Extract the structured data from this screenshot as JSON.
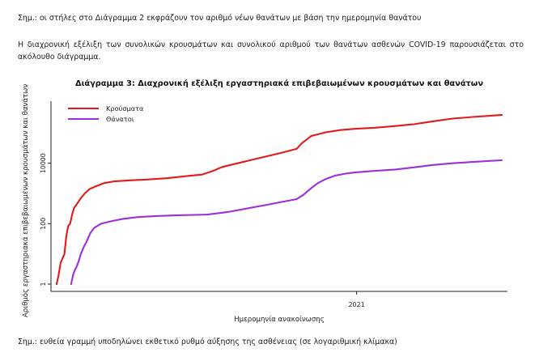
{
  "note_top": "Σημ.: οι στήλες στο Διάγραμμα 2 εκφράζουν τον αριθμό νέων θανάτων με βάση την ημερομηνία θανάτου",
  "paragraph": "Η διαχρονική εξέλιξη των συνολικών κρουσμάτων και συνολικού αριθμού των θανάτων ασθενών COVID-19 παρουσιάζεται στο ακόλουθο διάγραμμα.",
  "note_bottom": "Σημ.: ευθεία γραμμή υποδηλώνει εκθετικό ρυθμό αύξησης της ασθένειας (σε λογαριθμική κλίμακα)",
  "chart_data": {
    "type": "line",
    "title": "Διάγραμμα 3: Διαχρονική εξέλιξη εργαστηριακά επιβεβαιωμένων κρουσμάτων και θανάτων",
    "xlabel": "Ημερομηνία ανακοίνωσης",
    "ylabel": "Αριθμός εργαστηριακά επιβεβαιωμένων κρουσμάτων και θανάτων",
    "y_scale": "log",
    "ylim": [
      1,
      1000000
    ],
    "yticks": [
      1,
      100,
      10000
    ],
    "ytick_labels": [
      "1",
      "100",
      "10000"
    ],
    "xlim": [
      "2020-02-26",
      "2021-05-31"
    ],
    "xticks": [
      "2021-01-01"
    ],
    "xtick_labels": [
      "2021"
    ],
    "legend_position": "top-left",
    "grid": false,
    "series": [
      {
        "name": "Κρούσματα",
        "color": "#e31a1c",
        "points": [
          [
            "2020-02-26",
            1
          ],
          [
            "2020-02-28",
            2
          ],
          [
            "2020-03-01",
            5
          ],
          [
            "2020-03-03",
            7
          ],
          [
            "2020-03-05",
            10
          ],
          [
            "2020-03-07",
            40
          ],
          [
            "2020-03-09",
            84
          ],
          [
            "2020-03-11",
            100
          ],
          [
            "2020-03-13",
            200
          ],
          [
            "2020-03-15",
            331
          ],
          [
            "2020-03-18",
            450
          ],
          [
            "2020-03-22",
            700
          ],
          [
            "2020-03-26",
            1000
          ],
          [
            "2020-03-31",
            1400
          ],
          [
            "2020-04-06",
            1700
          ],
          [
            "2020-04-15",
            2200
          ],
          [
            "2020-04-25",
            2500
          ],
          [
            "2020-05-10",
            2700
          ],
          [
            "2020-05-31",
            2900
          ],
          [
            "2020-06-20",
            3200
          ],
          [
            "2020-07-10",
            3800
          ],
          [
            "2020-07-25",
            4200
          ],
          [
            "2020-08-05",
            5500
          ],
          [
            "2020-08-15",
            7500
          ],
          [
            "2020-08-31",
            10000
          ],
          [
            "2020-09-15",
            13000
          ],
          [
            "2020-09-30",
            17000
          ],
          [
            "2020-10-15",
            22000
          ],
          [
            "2020-10-31",
            30000
          ],
          [
            "2020-11-05",
            45000
          ],
          [
            "2020-11-15",
            80000
          ],
          [
            "2020-11-30",
            105000
          ],
          [
            "2020-12-15",
            125000
          ],
          [
            "2020-12-31",
            138000
          ],
          [
            "2021-01-20",
            150000
          ],
          [
            "2021-02-10",
            170000
          ],
          [
            "2021-03-01",
            195000
          ],
          [
            "2021-03-20",
            240000
          ],
          [
            "2021-04-10",
            300000
          ],
          [
            "2021-05-01",
            340000
          ],
          [
            "2021-05-20",
            375000
          ],
          [
            "2021-05-31",
            400000
          ]
        ]
      },
      {
        "name": "Θάνατοι",
        "color": "#9b30d9",
        "points": [
          [
            "2020-03-12",
            1
          ],
          [
            "2020-03-14",
            2
          ],
          [
            "2020-03-16",
            3
          ],
          [
            "2020-03-18",
            4
          ],
          [
            "2020-03-20",
            6
          ],
          [
            "2020-03-22",
            10
          ],
          [
            "2020-03-25",
            17
          ],
          [
            "2020-03-28",
            26
          ],
          [
            "2020-04-01",
            50
          ],
          [
            "2020-04-05",
            73
          ],
          [
            "2020-04-12",
            100
          ],
          [
            "2020-04-22",
            120
          ],
          [
            "2020-05-05",
            145
          ],
          [
            "2020-05-20",
            165
          ],
          [
            "2020-06-10",
            180
          ],
          [
            "2020-07-01",
            190
          ],
          [
            "2020-07-31",
            200
          ],
          [
            "2020-08-20",
            240
          ],
          [
            "2020-09-10",
            320
          ],
          [
            "2020-09-30",
            420
          ],
          [
            "2020-10-15",
            520
          ],
          [
            "2020-10-31",
            650
          ],
          [
            "2020-11-07",
            900
          ],
          [
            "2020-11-15",
            1500
          ],
          [
            "2020-11-22",
            2200
          ],
          [
            "2020-11-30",
            3000
          ],
          [
            "2020-12-10",
            3900
          ],
          [
            "2020-12-20",
            4500
          ],
          [
            "2020-12-31",
            5000
          ],
          [
            "2021-01-20",
            5600
          ],
          [
            "2021-02-10",
            6200
          ],
          [
            "2021-03-01",
            7300
          ],
          [
            "2021-03-20",
            8700
          ],
          [
            "2021-04-10",
            10000
          ],
          [
            "2021-05-01",
            11000
          ],
          [
            "2021-05-20",
            12000
          ],
          [
            "2021-05-31",
            12500
          ]
        ]
      }
    ]
  }
}
